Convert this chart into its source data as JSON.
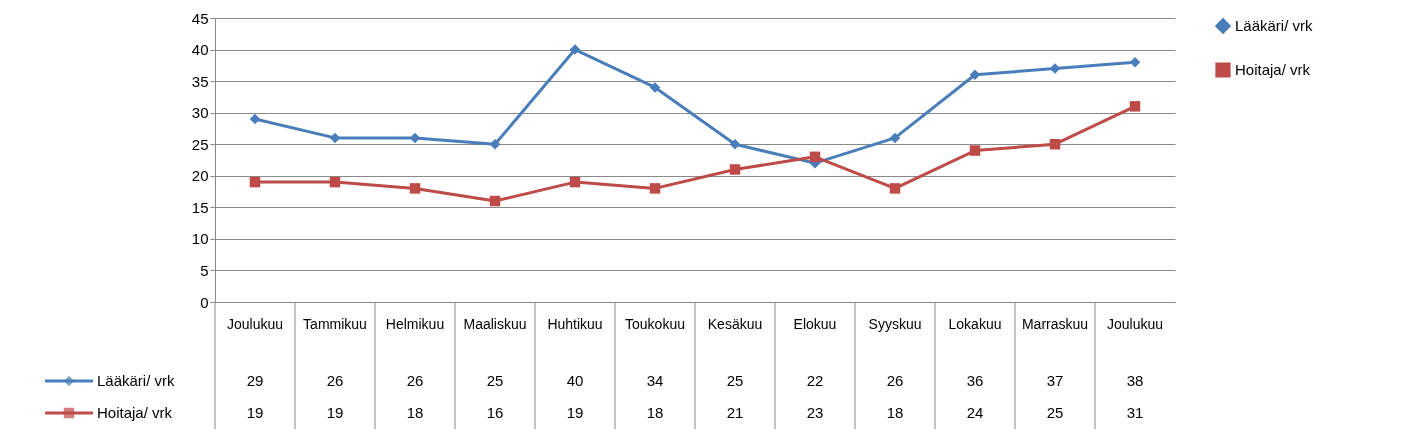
{
  "chart_data": {
    "type": "line",
    "categories": [
      "Joulukuu",
      "Tammikuu",
      "Helmikuu",
      "Maaliskuu",
      "Huhtikuu",
      "Toukokuu",
      "Kesäkuu",
      "Elokuu",
      "Syyskuu",
      "Lokakuu",
      "Marraskuu",
      "Joulukuu"
    ],
    "series": [
      {
        "name": "Lääkäri/  vrk",
        "color": "#4a7ebb",
        "marker": "diamond",
        "values": [
          29,
          26,
          26,
          25,
          40,
          34,
          25,
          22,
          26,
          36,
          37,
          38
        ]
      },
      {
        "name": "Hoitaja/  vrk",
        "color": "#be4b48",
        "marker": "square",
        "values": [
          19,
          19,
          18,
          16,
          19,
          18,
          21,
          23,
          18,
          24,
          25,
          31
        ]
      }
    ],
    "ylim": [
      0,
      45
    ],
    "yticks": [
      0,
      5,
      10,
      15,
      20,
      25,
      30,
      35,
      40,
      45
    ],
    "grid": "y",
    "legend": "right",
    "data_labels": true
  }
}
